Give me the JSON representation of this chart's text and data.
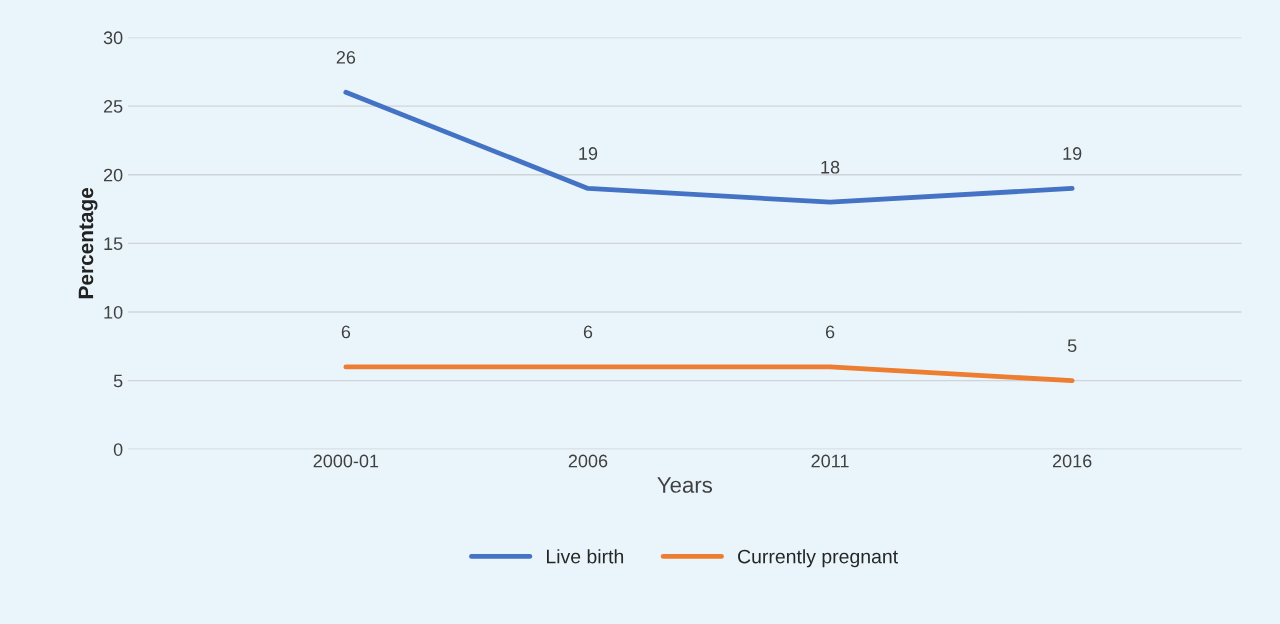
{
  "chart_data": {
    "type": "line",
    "xlabel": "Years",
    "ylabel": "Percentage",
    "categories": [
      "2000-01",
      "2006",
      "2011",
      "2016"
    ],
    "series": [
      {
        "name": "Live birth",
        "color": "#4472c4",
        "values": [
          26,
          19,
          18,
          19
        ]
      },
      {
        "name": "Currently pregnant",
        "color": "#ed7d31",
        "values": [
          6,
          6,
          6,
          5
        ]
      }
    ],
    "ylim": [
      0,
      30
    ],
    "yticks": [
      0,
      5,
      10,
      15,
      20,
      25,
      30
    ],
    "grid": "y",
    "legend": "bottom",
    "data_labels": true,
    "marker": "none",
    "line_style": "solid"
  }
}
